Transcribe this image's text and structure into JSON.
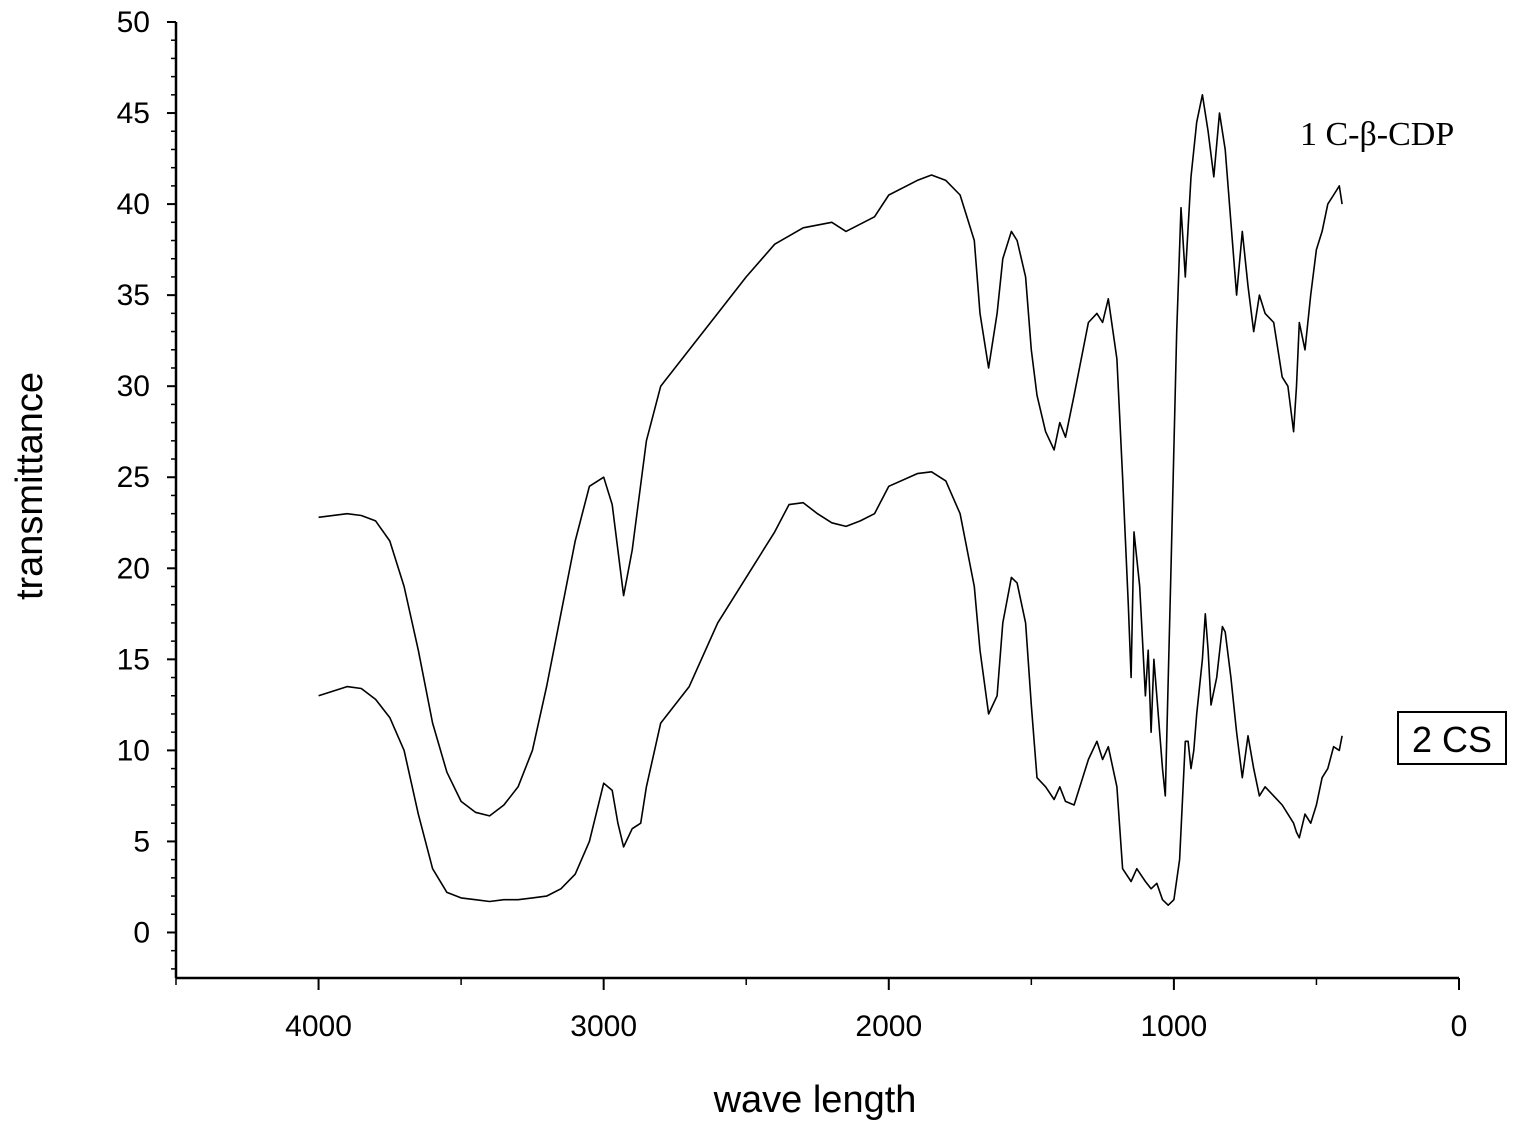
{
  "chart_data": {
    "type": "line",
    "title": "",
    "xlabel": "wave length",
    "ylabel": "transmittance",
    "xlim": [
      4500,
      0
    ],
    "ylim": [
      -2.5,
      50
    ],
    "x_ticks": [
      4000,
      3000,
      2000,
      1000,
      0
    ],
    "y_ticks": [
      0,
      5,
      10,
      15,
      20,
      25,
      30,
      35,
      40,
      45,
      50
    ],
    "grid": false,
    "legend": "none",
    "series": [
      {
        "name": "1 C-β-CDP",
        "label_boxed": false,
        "x": [
          4000,
          3900,
          3850,
          3800,
          3750,
          3700,
          3650,
          3600,
          3550,
          3500,
          3450,
          3400,
          3350,
          3300,
          3250,
          3200,
          3150,
          3100,
          3050,
          3000,
          2970,
          2950,
          2930,
          2900,
          2850,
          2800,
          2700,
          2600,
          2500,
          2400,
          2300,
          2200,
          2150,
          2050,
          2000,
          1900,
          1850,
          1800,
          1750,
          1700,
          1680,
          1650,
          1620,
          1600,
          1570,
          1550,
          1520,
          1500,
          1480,
          1450,
          1420,
          1400,
          1380,
          1350,
          1300,
          1270,
          1250,
          1230,
          1200,
          1180,
          1160,
          1150,
          1140,
          1120,
          1100,
          1090,
          1080,
          1070,
          1060,
          1040,
          1030,
          1010,
          990,
          975,
          960,
          940,
          920,
          900,
          880,
          860,
          840,
          820,
          800,
          780,
          760,
          740,
          720,
          700,
          680,
          650,
          620,
          600,
          580,
          570,
          560,
          540,
          520,
          500,
          480,
          460,
          440,
          420,
          410
        ],
        "y": [
          22.8,
          23.0,
          22.9,
          22.6,
          21.5,
          19.0,
          15.5,
          11.5,
          8.8,
          7.2,
          6.6,
          6.4,
          7.0,
          8.0,
          10.0,
          13.5,
          17.5,
          21.5,
          24.5,
          25.0,
          23.5,
          21.0,
          18.5,
          21.0,
          27.0,
          30.0,
          32.0,
          34.0,
          36.0,
          37.8,
          38.7,
          39.0,
          38.5,
          39.3,
          40.5,
          41.3,
          41.6,
          41.3,
          40.5,
          38.0,
          34.0,
          31.0,
          34.0,
          37.0,
          38.5,
          38.0,
          36.0,
          32.0,
          29.5,
          27.5,
          26.5,
          28.0,
          27.2,
          29.5,
          33.5,
          34.0,
          33.5,
          34.8,
          31.5,
          25.0,
          18.0,
          14.0,
          22.0,
          19.0,
          13.0,
          15.5,
          11.0,
          15.0,
          13.0,
          9.0,
          7.5,
          20.0,
          33.0,
          39.8,
          36.0,
          41.5,
          44.5,
          46.0,
          44.0,
          41.5,
          45.0,
          43.0,
          39.0,
          35.0,
          38.5,
          35.5,
          33.0,
          35.0,
          34.0,
          33.5,
          30.5,
          30.0,
          27.5,
          30.0,
          33.5,
          32.0,
          35.0,
          37.5,
          38.5,
          40.0,
          40.5,
          41.0,
          40.0
        ]
      },
      {
        "name": "2 CS",
        "label_boxed": true,
        "x": [
          4000,
          3900,
          3850,
          3800,
          3750,
          3700,
          3650,
          3600,
          3550,
          3500,
          3450,
          3400,
          3350,
          3300,
          3250,
          3200,
          3150,
          3100,
          3050,
          3000,
          2970,
          2950,
          2930,
          2900,
          2870,
          2850,
          2800,
          2700,
          2600,
          2500,
          2400,
          2350,
          2300,
          2250,
          2200,
          2150,
          2100,
          2050,
          2000,
          1900,
          1850,
          1800,
          1750,
          1700,
          1680,
          1650,
          1620,
          1600,
          1570,
          1550,
          1520,
          1500,
          1480,
          1450,
          1420,
          1400,
          1380,
          1350,
          1300,
          1270,
          1250,
          1230,
          1200,
          1180,
          1150,
          1130,
          1100,
          1080,
          1060,
          1040,
          1020,
          1000,
          980,
          960,
          950,
          940,
          930,
          920,
          900,
          890,
          880,
          870,
          850,
          830,
          820,
          800,
          780,
          760,
          740,
          720,
          700,
          680,
          650,
          620,
          600,
          580,
          570,
          560,
          540,
          520,
          500,
          480,
          460,
          440,
          420,
          410
        ],
        "y": [
          13.0,
          13.5,
          13.4,
          12.8,
          11.8,
          10.0,
          6.5,
          3.5,
          2.2,
          1.9,
          1.8,
          1.7,
          1.8,
          1.8,
          1.9,
          2.0,
          2.4,
          3.2,
          5.0,
          8.2,
          7.8,
          6.0,
          4.7,
          5.7,
          6.0,
          8.0,
          11.5,
          13.5,
          17.0,
          19.5,
          22.0,
          23.5,
          23.6,
          23.0,
          22.5,
          22.3,
          22.6,
          23.0,
          24.5,
          25.2,
          25.3,
          24.8,
          23.0,
          19.0,
          15.5,
          12.0,
          13.0,
          17.0,
          19.5,
          19.2,
          17.0,
          12.5,
          8.5,
          8.0,
          7.3,
          8.0,
          7.2,
          7.0,
          9.5,
          10.5,
          9.5,
          10.2,
          8.0,
          3.5,
          2.8,
          3.5,
          2.8,
          2.4,
          2.7,
          1.8,
          1.5,
          1.8,
          4.0,
          10.5,
          10.5,
          9.0,
          10.0,
          12.0,
          15.0,
          17.5,
          15.5,
          12.5,
          14.0,
          16.8,
          16.5,
          14.0,
          11.0,
          8.5,
          10.8,
          9.0,
          7.5,
          8.0,
          7.5,
          7.0,
          6.5,
          6.0,
          5.5,
          5.2,
          6.5,
          6.0,
          7.0,
          8.5,
          9.0,
          10.2,
          10.0,
          10.8
        ]
      }
    ]
  }
}
